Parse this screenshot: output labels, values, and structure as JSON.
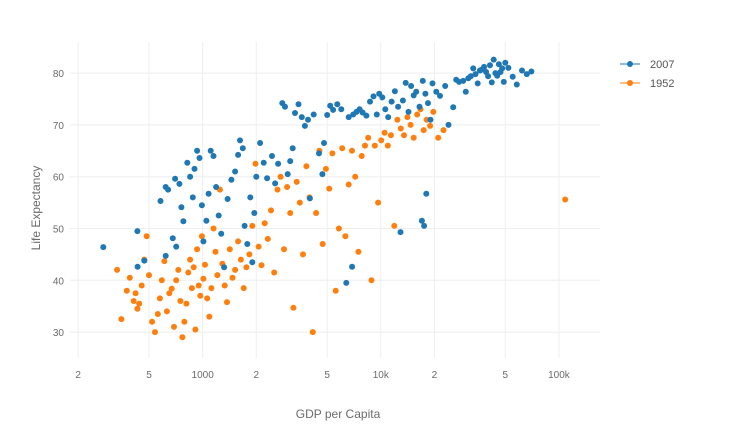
{
  "chart_data": {
    "type": "scatter",
    "title": "",
    "xlabel": "GDP per Capita",
    "ylabel": "Life Expectancy",
    "x_scale": "log",
    "xlim": [
      180,
      170000
    ],
    "ylim": [
      25,
      86
    ],
    "grid": true,
    "legend_position": "top-right",
    "x_ticks": [
      {
        "value": 200,
        "label": "2"
      },
      {
        "value": 500,
        "label": "5"
      },
      {
        "value": 1000,
        "label": "1000"
      },
      {
        "value": 2000,
        "label": "2"
      },
      {
        "value": 5000,
        "label": "5"
      },
      {
        "value": 10000,
        "label": "10k"
      },
      {
        "value": 20000,
        "label": "2"
      },
      {
        "value": 50000,
        "label": "5"
      },
      {
        "value": 100000,
        "label": "100k"
      }
    ],
    "y_ticks": [
      {
        "value": 30,
        "label": "30"
      },
      {
        "value": 40,
        "label": "40"
      },
      {
        "value": 50,
        "label": "50"
      },
      {
        "value": 60,
        "label": "60"
      },
      {
        "value": 70,
        "label": "70"
      },
      {
        "value": 80,
        "label": "80"
      }
    ],
    "series": [
      {
        "name": "2007",
        "color": "#1f77b4",
        "points": [
          [
            277,
            46.4
          ],
          [
            431,
            42.6
          ],
          [
            470,
            43.8
          ],
          [
            430,
            49.5
          ],
          [
            580,
            55.3
          ],
          [
            640,
            57.5
          ],
          [
            620,
            44.7
          ],
          [
            680,
            48.1
          ],
          [
            710,
            46.5
          ],
          [
            740,
            58.6
          ],
          [
            760,
            54.1
          ],
          [
            780,
            51.4
          ],
          [
            620,
            58.0
          ],
          [
            700,
            59.6
          ],
          [
            820,
            62.7
          ],
          [
            850,
            60.0
          ],
          [
            880,
            56.0
          ],
          [
            900,
            61.5
          ],
          [
            930,
            65.0
          ],
          [
            960,
            63.6
          ],
          [
            990,
            54.5
          ],
          [
            1010,
            47.5
          ],
          [
            1050,
            51.5
          ],
          [
            1080,
            56.7
          ],
          [
            1110,
            65.0
          ],
          [
            1150,
            64.0
          ],
          [
            1190,
            58.0
          ],
          [
            1230,
            52.5
          ],
          [
            1270,
            49.0
          ],
          [
            1320,
            42.5
          ],
          [
            1380,
            55.7
          ],
          [
            1450,
            59.4
          ],
          [
            1520,
            61.0
          ],
          [
            1580,
            64.2
          ],
          [
            1620,
            67.0
          ],
          [
            1680,
            65.5
          ],
          [
            1720,
            50.5
          ],
          [
            1780,
            47.0
          ],
          [
            1850,
            56.0
          ],
          [
            1900,
            43.5
          ],
          [
            1950,
            53.0
          ],
          [
            2000,
            60.0
          ],
          [
            2100,
            66.5
          ],
          [
            2200,
            62.7
          ],
          [
            2300,
            59.7
          ],
          [
            2450,
            64.0
          ],
          [
            2550,
            58.7
          ],
          [
            2650,
            62.5
          ],
          [
            2800,
            74.2
          ],
          [
            2900,
            73.5
          ],
          [
            3000,
            60.5
          ],
          [
            3100,
            63.0
          ],
          [
            3200,
            65.5
          ],
          [
            3300,
            72.3
          ],
          [
            3450,
            74.0
          ],
          [
            3600,
            71.5
          ],
          [
            3750,
            69.8
          ],
          [
            3900,
            71.0
          ],
          [
            4000,
            55.8
          ],
          [
            4200,
            72.0
          ],
          [
            4500,
            64.5
          ],
          [
            4700,
            60.5
          ],
          [
            4800,
            66.5
          ],
          [
            5000,
            71.9
          ],
          [
            5200,
            73.7
          ],
          [
            5400,
            72.9
          ],
          [
            5700,
            74.0
          ],
          [
            6000,
            73.0
          ],
          [
            6400,
            39.5
          ],
          [
            6600,
            71.5
          ],
          [
            6900,
            42.6
          ],
          [
            7000,
            72.0
          ],
          [
            7300,
            72.5
          ],
          [
            7600,
            73.0
          ],
          [
            7900,
            72.4
          ],
          [
            8300,
            71.8
          ],
          [
            8700,
            74.5
          ],
          [
            9100,
            75.5
          ],
          [
            9500,
            72.0
          ],
          [
            9800,
            76.0
          ],
          [
            10200,
            75.3
          ],
          [
            10600,
            73.0
          ],
          [
            11000,
            71.5
          ],
          [
            11500,
            74.5
          ],
          [
            12000,
            76.5
          ],
          [
            12500,
            73.5
          ],
          [
            12900,
            49.3
          ],
          [
            13300,
            74.7
          ],
          [
            13800,
            78.1
          ],
          [
            14300,
            72.5
          ],
          [
            14800,
            77.5
          ],
          [
            15300,
            75.7
          ],
          [
            15800,
            76.4
          ],
          [
            16500,
            73.5
          ],
          [
            17000,
            51.5
          ],
          [
            17200,
            78.5
          ],
          [
            17500,
            50.5
          ],
          [
            17800,
            76.0
          ],
          [
            18000,
            56.7
          ],
          [
            18400,
            74.2
          ],
          [
            19000,
            71.0
          ],
          [
            19500,
            78.0
          ],
          [
            20500,
            76.4
          ],
          [
            21500,
            75.6
          ],
          [
            23000,
            77.5
          ],
          [
            24000,
            70.0
          ],
          [
            25500,
            73.4
          ],
          [
            26500,
            78.7
          ],
          [
            27500,
            78.3
          ],
          [
            29000,
            78.5
          ],
          [
            30000,
            76.4
          ],
          [
            31000,
            79.0
          ],
          [
            32000,
            79.4
          ],
          [
            33000,
            80.9
          ],
          [
            34000,
            79.8
          ],
          [
            35000,
            78.0
          ],
          [
            36000,
            80.5
          ],
          [
            37000,
            80.7
          ],
          [
            38000,
            81.2
          ],
          [
            39000,
            80.2
          ],
          [
            40000,
            79.4
          ],
          [
            41000,
            81.5
          ],
          [
            42000,
            78.2
          ],
          [
            43000,
            82.6
          ],
          [
            44000,
            80.0
          ],
          [
            45000,
            79.5
          ],
          [
            46000,
            81.7
          ],
          [
            47000,
            80.2
          ],
          [
            48000,
            80.9
          ],
          [
            49000,
            78.3
          ],
          [
            50000,
            82.0
          ],
          [
            52000,
            81.0
          ],
          [
            55000,
            79.3
          ],
          [
            58000,
            77.8
          ],
          [
            62000,
            80.5
          ],
          [
            66000,
            79.8
          ],
          [
            70000,
            80.3
          ]
        ]
      },
      {
        "name": "1952",
        "color": "#ff7f0e",
        "points": [
          [
            331,
            42.0
          ],
          [
            350,
            32.5
          ],
          [
            375,
            38.0
          ],
          [
            390,
            40.5
          ],
          [
            410,
            36.0
          ],
          [
            420,
            37.5
          ],
          [
            430,
            34.5
          ],
          [
            440,
            35.5
          ],
          [
            455,
            39.0
          ],
          [
            470,
            44.0
          ],
          [
            485,
            48.5
          ],
          [
            500,
            41.0
          ],
          [
            520,
            32.0
          ],
          [
            540,
            30.0
          ],
          [
            560,
            33.5
          ],
          [
            575,
            36.5
          ],
          [
            590,
            40.0
          ],
          [
            610,
            43.7
          ],
          [
            630,
            34.0
          ],
          [
            650,
            37.5
          ],
          [
            670,
            38.4
          ],
          [
            690,
            31.0
          ],
          [
            710,
            40.0
          ],
          [
            730,
            42.0
          ],
          [
            750,
            36.0
          ],
          [
            770,
            29.0
          ],
          [
            790,
            32.0
          ],
          [
            810,
            35.5
          ],
          [
            830,
            41.5
          ],
          [
            850,
            44.0
          ],
          [
            870,
            38.5
          ],
          [
            890,
            42.5
          ],
          [
            910,
            30.5
          ],
          [
            930,
            46.0
          ],
          [
            950,
            39.0
          ],
          [
            970,
            37.0
          ],
          [
            990,
            48.5
          ],
          [
            1010,
            40.3
          ],
          [
            1030,
            43.0
          ],
          [
            1060,
            36.5
          ],
          [
            1090,
            33.0
          ],
          [
            1120,
            38.5
          ],
          [
            1150,
            50.0
          ],
          [
            1180,
            45.5
          ],
          [
            1210,
            41.0
          ],
          [
            1250,
            57.5
          ],
          [
            1290,
            43.2
          ],
          [
            1330,
            39.0
          ],
          [
            1370,
            35.8
          ],
          [
            1420,
            46.0
          ],
          [
            1470,
            40.5
          ],
          [
            1520,
            42.0
          ],
          [
            1580,
            47.5
          ],
          [
            1640,
            44.0
          ],
          [
            1700,
            38.5
          ],
          [
            1760,
            42.5
          ],
          [
            1830,
            45.0
          ],
          [
            1900,
            50.5
          ],
          [
            1980,
            62.5
          ],
          [
            2060,
            46.5
          ],
          [
            2140,
            42.9
          ],
          [
            2230,
            51.0
          ],
          [
            2320,
            48.0
          ],
          [
            2420,
            53.5
          ],
          [
            2520,
            41.5
          ],
          [
            2630,
            57.5
          ],
          [
            2740,
            60.0
          ],
          [
            2860,
            46.0
          ],
          [
            2980,
            58.0
          ],
          [
            3100,
            53.0
          ],
          [
            3230,
            34.7
          ],
          [
            3370,
            59.0
          ],
          [
            3510,
            55.0
          ],
          [
            3660,
            45.0
          ],
          [
            3820,
            62.0
          ],
          [
            3980,
            56.0
          ],
          [
            4150,
            30.0
          ],
          [
            4330,
            53.0
          ],
          [
            4520,
            65.0
          ],
          [
            4720,
            47.0
          ],
          [
            4920,
            61.5
          ],
          [
            5130,
            57.7
          ],
          [
            5350,
            64.5
          ],
          [
            5580,
            38.0
          ],
          [
            5820,
            50.0
          ],
          [
            6070,
            65.5
          ],
          [
            6330,
            48.5
          ],
          [
            6600,
            58.5
          ],
          [
            6890,
            65.0
          ],
          [
            7180,
            60.0
          ],
          [
            7490,
            45.5
          ],
          [
            7810,
            64.0
          ],
          [
            8150,
            66.0
          ],
          [
            8500,
            67.5
          ],
          [
            8870,
            40.0
          ],
          [
            9250,
            66.0
          ],
          [
            9650,
            55.0
          ],
          [
            10050,
            67.0
          ],
          [
            10500,
            68.5
          ],
          [
            10950,
            66.0
          ],
          [
            11400,
            68.0
          ],
          [
            11900,
            50.5
          ],
          [
            12400,
            71.0
          ],
          [
            12950,
            69.3
          ],
          [
            13500,
            68.0
          ],
          [
            14100,
            71.5
          ],
          [
            14700,
            70.0
          ],
          [
            15300,
            67.5
          ],
          [
            16000,
            72.0
          ],
          [
            16700,
            73.0
          ],
          [
            17400,
            69.0
          ],
          [
            18100,
            71.0
          ],
          [
            18900,
            69.8
          ],
          [
            19700,
            72.5
          ],
          [
            21000,
            67.5
          ],
          [
            22500,
            69.0
          ],
          [
            108382,
            55.6
          ]
        ]
      }
    ]
  }
}
